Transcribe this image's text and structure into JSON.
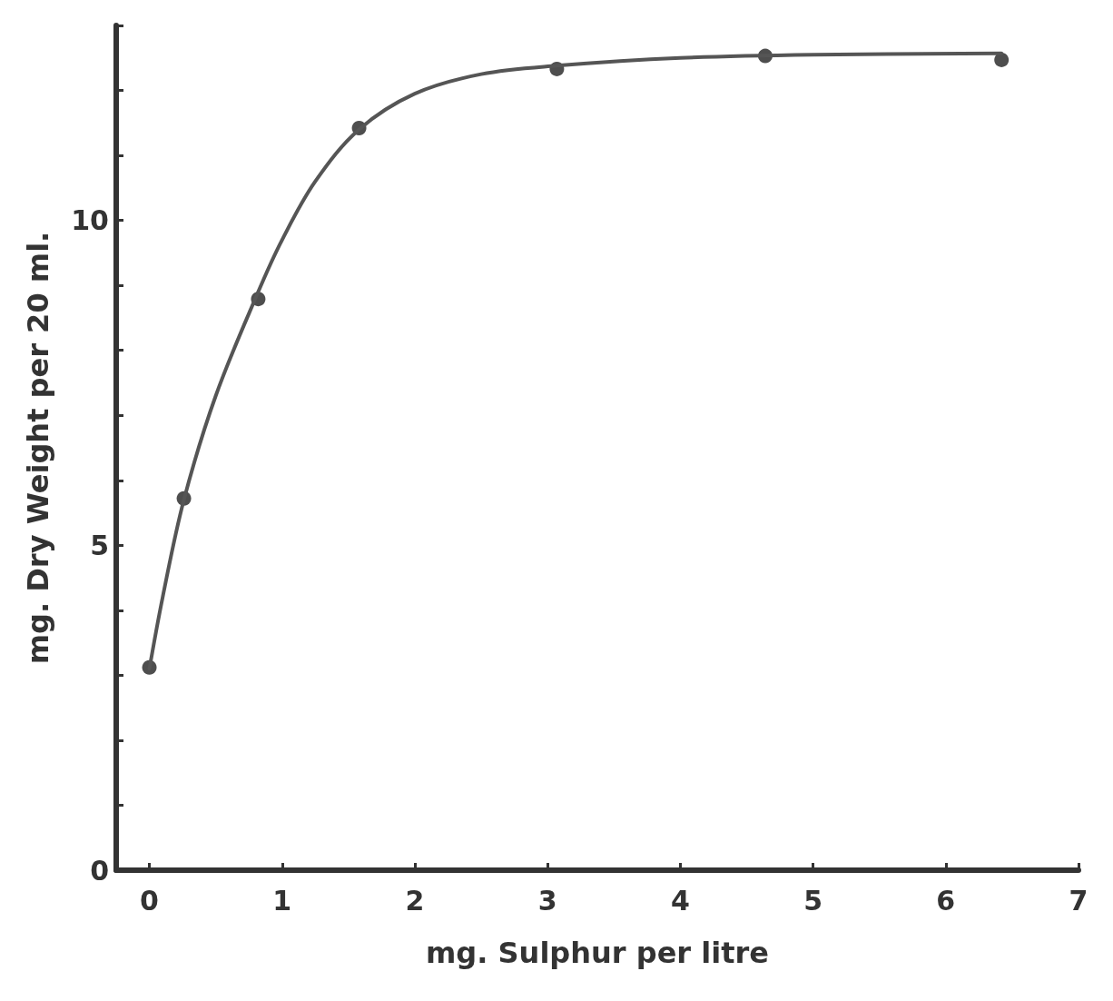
{
  "chart_data": {
    "type": "scatter",
    "xlabel": "mg. Sulphur per litre",
    "ylabel": "mg. Dry Weight per 20 ml.",
    "xlim": [
      -0.25,
      7
    ],
    "ylim": [
      0,
      13
    ],
    "xticks": [
      0,
      1,
      2,
      3,
      4,
      5,
      6,
      7
    ],
    "yticks": [
      0,
      {
        "value": 1,
        "label": null
      },
      {
        "value": 2,
        "label": null
      },
      {
        "value": 3,
        "label": null
      },
      {
        "value": 4,
        "label": null
      },
      5,
      {
        "value": 6,
        "label": null
      },
      {
        "value": 7,
        "label": null
      },
      {
        "value": 8,
        "label": null
      },
      {
        "value": 9,
        "label": null
      },
      10,
      {
        "value": 11,
        "label": null
      },
      {
        "value": 12,
        "label": null
      },
      {
        "value": 13,
        "label": null
      }
    ],
    "grid": false,
    "marker": "circle",
    "series": [
      {
        "color": "#222222",
        "x": [
          0,
          0.26,
          0.82,
          1.58,
          3.07,
          4.64,
          6.42
        ],
        "values": [
          3.12,
          5.72,
          8.79,
          11.42,
          12.33,
          12.53,
          12.47
        ]
      },
      {
        "type": "line",
        "color": "#555555",
        "line_style": "solid",
        "marker": "none",
        "x": [
          0,
          0.1,
          0.26,
          0.5,
          0.82,
          1.0,
          1.25,
          1.58,
          2.0,
          2.5,
          3.07,
          4.0,
          5.0,
          6.42
        ],
        "values": [
          3.1,
          4.2,
          5.7,
          7.3,
          8.9,
          9.7,
          10.6,
          11.4,
          11.95,
          12.25,
          12.38,
          12.5,
          12.55,
          12.57
        ]
      }
    ]
  }
}
